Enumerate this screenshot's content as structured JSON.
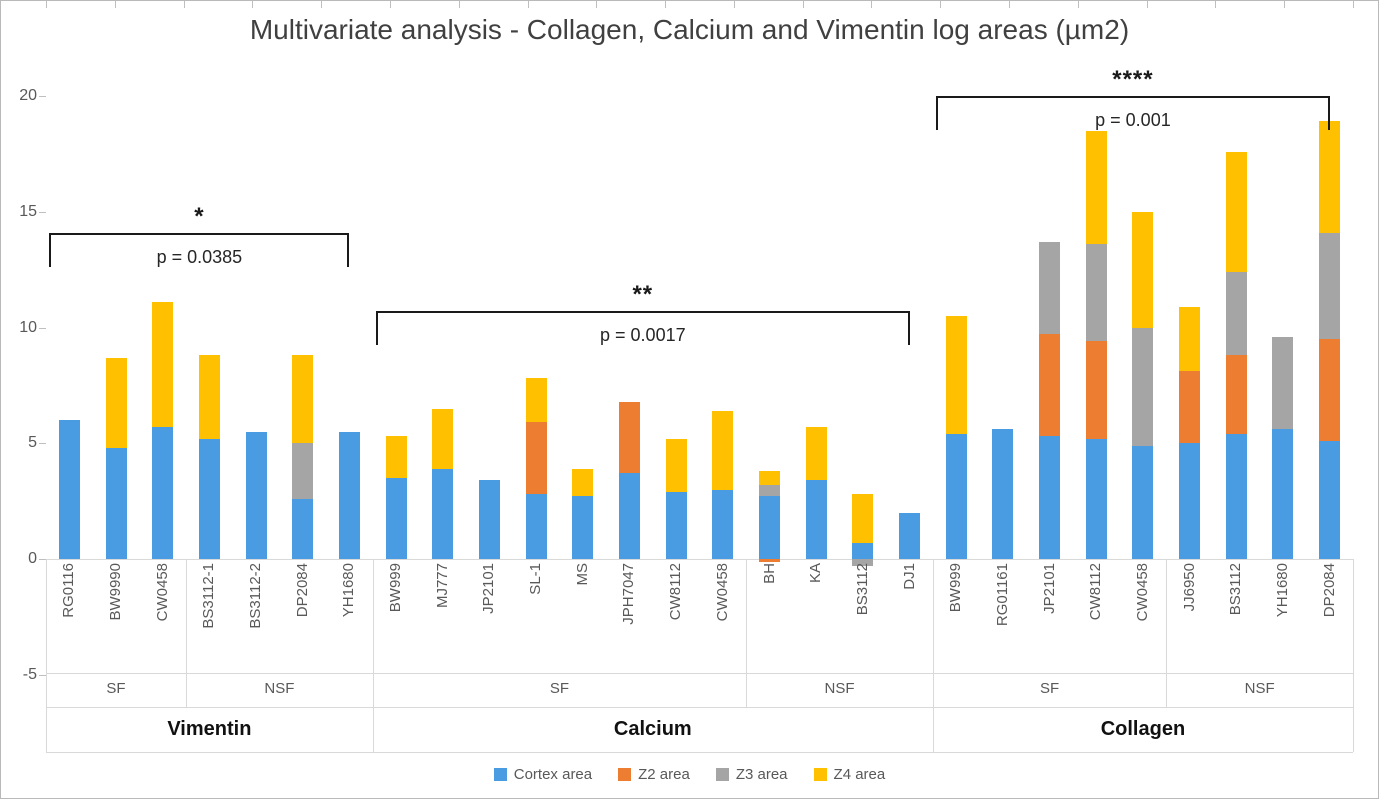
{
  "title": "Multivariate analysis - Collagen, Calcium and Vimentin log areas (µm2)",
  "legend": [
    {
      "label": "Cortex area",
      "color": "#4A9CE2"
    },
    {
      "label": "Z2 area",
      "color": "#ED7D31"
    },
    {
      "label": "Z3 area",
      "color": "#A5A5A5"
    },
    {
      "label": "Z4 area",
      "color": "#FFC000"
    }
  ],
  "chart_data": {
    "type": "bar",
    "stacked": true,
    "title": "Multivariate analysis - Collagen, Calcium and Vimentin log areas (µm2)",
    "xlabel": "",
    "ylabel": "",
    "ylim": [
      -5,
      20
    ],
    "yticks": [
      20,
      15,
      10,
      5,
      0,
      -5
    ],
    "grid": false,
    "legend_position": "bottom",
    "series": [
      "Cortex area",
      "Z2 area",
      "Z3 area",
      "Z4 area"
    ],
    "colors": [
      "#4A9CE2",
      "#ED7D31",
      "#A5A5A5",
      "#FFC000"
    ],
    "groups": [
      {
        "name": "Vimentin",
        "annotation": {
          "stars": "*",
          "p_text": "p = 0.0385",
          "y_line": 14.1
        },
        "subgroups": [
          {
            "name": "SF",
            "bars": [
              {
                "label": "RG0116",
                "values": [
                  6.0,
                  0,
                  0,
                  0
                ]
              },
              {
                "label": "BW9990",
                "values": [
                  4.8,
                  0,
                  0,
                  3.9
                ]
              },
              {
                "label": "CW0458",
                "values": [
                  5.7,
                  0,
                  0,
                  5.4
                ]
              }
            ]
          },
          {
            "name": "NSF",
            "bars": [
              {
                "label": "BS3112-1",
                "values": [
                  5.2,
                  0,
                  0,
                  3.6
                ]
              },
              {
                "label": "BS3112-2",
                "values": [
                  5.5,
                  0,
                  0,
                  0
                ]
              },
              {
                "label": "DP2084",
                "values": [
                  2.6,
                  0,
                  2.4,
                  3.8
                ]
              },
              {
                "label": "YH1680",
                "values": [
                  5.5,
                  0,
                  0,
                  0
                ]
              }
            ]
          }
        ]
      },
      {
        "name": "Calcium",
        "annotation": {
          "stars": "**",
          "p_text": "p = 0.0017",
          "y_line": 10.7
        },
        "subgroups": [
          {
            "name": "SF",
            "bars": [
              {
                "label": "BW999",
                "values": [
                  3.5,
                  0,
                  0,
                  1.8
                ]
              },
              {
                "label": "MJ777",
                "values": [
                  3.9,
                  0,
                  0,
                  2.6
                ]
              },
              {
                "label": "JP2101",
                "values": [
                  3.4,
                  0,
                  0,
                  0
                ]
              },
              {
                "label": "SL-1",
                "values": [
                  2.8,
                  3.1,
                  0,
                  1.9
                ]
              },
              {
                "label": "MS",
                "values": [
                  2.7,
                  0,
                  0,
                  1.2
                ]
              },
              {
                "label": "JPH7047",
                "values": [
                  3.7,
                  3.1,
                  0,
                  0
                ]
              },
              {
                "label": "CW8112",
                "values": [
                  2.9,
                  0,
                  0,
                  2.3
                ]
              },
              {
                "label": "CW0458",
                "values": [
                  3.0,
                  0,
                  0,
                  3.4
                ]
              }
            ]
          },
          {
            "name": "NSF",
            "bars": [
              {
                "label": "BH",
                "values": [
                  2.7,
                  -0.15,
                  0.5,
                  0.6
                ]
              },
              {
                "label": "KA",
                "values": [
                  3.4,
                  0,
                  0,
                  2.3
                ]
              },
              {
                "label": "BS3112",
                "values": [
                  0.7,
                  0,
                  -0.3,
                  2.1
                ]
              },
              {
                "label": "DJ1",
                "values": [
                  2.0,
                  0,
                  0,
                  0
                ]
              }
            ]
          }
        ]
      },
      {
        "name": "Collagen",
        "annotation": {
          "stars": "****",
          "p_text": "p = 0.001",
          "y_line": 20.0
        },
        "subgroups": [
          {
            "name": "SF",
            "bars": [
              {
                "label": "BW999",
                "values": [
                  5.4,
                  0,
                  0,
                  5.1
                ]
              },
              {
                "label": "RG01161",
                "values": [
                  5.6,
                  0,
                  0,
                  0
                ]
              },
              {
                "label": "JP2101",
                "values": [
                  5.3,
                  4.4,
                  4.0,
                  0
                ]
              },
              {
                "label": "CW8112",
                "values": [
                  5.2,
                  4.2,
                  4.2,
                  4.9
                ]
              },
              {
                "label": "CW0458",
                "values": [
                  4.9,
                  0,
                  5.1,
                  5.0
                ]
              }
            ]
          },
          {
            "name": "NSF",
            "bars": [
              {
                "label": "JJ6950",
                "values": [
                  5.0,
                  3.1,
                  0,
                  2.8
                ]
              },
              {
                "label": "BS3112",
                "values": [
                  5.4,
                  3.4,
                  3.6,
                  5.2
                ]
              },
              {
                "label": "YH1680",
                "values": [
                  5.6,
                  0,
                  4.0,
                  0
                ]
              },
              {
                "label": "DP2084",
                "values": [
                  5.1,
                  4.4,
                  4.6,
                  4.8
                ]
              }
            ]
          }
        ]
      }
    ]
  }
}
